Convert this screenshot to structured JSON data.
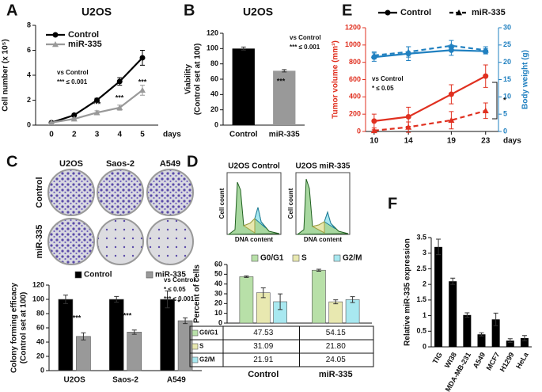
{
  "chart_data": [
    {
      "type": "line",
      "panel": "A",
      "title": "U2OS",
      "ylabel": [
        "Cell number (x 10⁵)"
      ],
      "xlabel": "days",
      "categories": [
        "0",
        "2",
        "3",
        "4",
        "5"
      ],
      "series": [
        {
          "name": "Control",
          "color": "#000000",
          "marker": "circle",
          "values": [
            0.2,
            0.8,
            2.0,
            3.5,
            5.4
          ],
          "errors": [
            0.05,
            0.1,
            0.15,
            0.3,
            0.6
          ]
        },
        {
          "name": "miR-335",
          "color": "#999999",
          "marker": "triangle",
          "values": [
            0.2,
            0.5,
            1.0,
            1.4,
            2.8
          ],
          "errors": [
            0.05,
            0.08,
            0.15,
            0.2,
            0.4
          ]
        }
      ],
      "ylim": [
        0,
        8
      ],
      "yticks": [
        0,
        2,
        4,
        6,
        8
      ],
      "annotations": [
        "vs Control",
        "*** ≤ 0.001",
        "***",
        "***",
        "***"
      ]
    },
    {
      "type": "bar",
      "panel": "B",
      "title": "U2OS",
      "ylabel": [
        "Viability",
        "(Control set at 100)"
      ],
      "categories": [
        "Control",
        "miR-335"
      ],
      "values": [
        100,
        71
      ],
      "errors": [
        2,
        1.5
      ],
      "colors": [
        "#000000",
        "#999999"
      ],
      "ylim": [
        0,
        120
      ],
      "yticks": [
        0,
        20,
        40,
        60,
        80,
        100,
        120
      ],
      "annotations": [
        "vs Control",
        "*** ≤ 0.001",
        "***"
      ]
    },
    {
      "type": "line",
      "panel": "E",
      "ylabel": [
        "Tumor volume (mm³)"
      ],
      "y2label": "Body weight (g)",
      "xlabel": "days",
      "x": [
        10,
        14,
        19,
        23
      ],
      "xlim": [
        9,
        24.5
      ],
      "xticks": [
        10,
        14,
        19,
        23
      ],
      "legend_color": "#000000",
      "y_axis_color": "#e03020",
      "y2_axis_color": "#2080c0",
      "series": [
        {
          "name": "Control",
          "color": "#e03020",
          "marker": "circle",
          "dash": false,
          "values": [
            120,
            170,
            430,
            640
          ],
          "errors": [
            80,
            110,
            110,
            130
          ]
        },
        {
          "name": "miR-335",
          "color": "#e03020",
          "marker": "triangle",
          "dash": true,
          "values": [
            10,
            50,
            130,
            240
          ],
          "errors": [
            10,
            60,
            100,
            90
          ]
        },
        {
          "color": "#2080c0",
          "marker": "circle",
          "dash": false,
          "axis": "y2",
          "values": [
            21.5,
            22.5,
            23.5,
            23.2
          ],
          "errors": [
            1.2,
            2,
            1.5,
            0.8
          ]
        },
        {
          "color": "#2080c0",
          "marker": "triangle",
          "dash": true,
          "axis": "y2",
          "values": [
            22,
            23,
            24.8,
            23.5
          ],
          "errors": [
            1,
            1.5,
            1.5,
            1
          ]
        }
      ],
      "ylim": [
        0,
        1200
      ],
      "yticks": [
        0,
        200,
        400,
        600,
        800,
        1000,
        1200
      ],
      "y2lim": [
        0,
        30
      ],
      "y2ticks": [
        0,
        5,
        10,
        15,
        20,
        25,
        30
      ],
      "annotations": [
        "vs Control",
        "* ≤ 0.05",
        "*"
      ]
    },
    {
      "type": "bar",
      "panel": "C",
      "ylabel": [
        "Colony forming efficacy",
        "(Control set at 100)"
      ],
      "plate_columns": [
        "U2OS",
        "Saos-2",
        "A549"
      ],
      "plate_rows": [
        "Control",
        "miR-335"
      ],
      "categories": [
        "U2OS",
        "Saos-2",
        "A549"
      ],
      "series": [
        {
          "name": "Control",
          "color": "#000000",
          "values": [
            100,
            100,
            100
          ],
          "errors": [
            6,
            4,
            12
          ]
        },
        {
          "name": "miR-335",
          "color": "#999999",
          "values": [
            48,
            54,
            70
          ],
          "errors": [
            5,
            3,
            4
          ]
        }
      ],
      "ylim": [
        0,
        120
      ],
      "yticks": [
        0,
        20,
        40,
        60,
        80,
        100,
        120
      ],
      "annotations": [
        "vs Control",
        "* ≤ 0.05",
        "*** ≤ 0.001",
        "***",
        "***",
        "*"
      ]
    },
    {
      "type": "bar",
      "panel": "D",
      "ylabel": [
        "Percent of cells"
      ],
      "histograms": [
        "U2OS Control",
        "U2OS miR-335"
      ],
      "hist_ylabel": "Cell count",
      "hist_xlabel": "DNA content",
      "categories": [
        "Control",
        "miR-335"
      ],
      "series": [
        {
          "name": "G0/G1",
          "color": "#b8e0a8",
          "values": [
            47.53,
            54.15
          ],
          "value_labels": [
            "47.53",
            "54.15"
          ],
          "errors": [
            0.8,
            1
          ]
        },
        {
          "name": "S",
          "color": "#e8e8b0",
          "values": [
            31.09,
            21.8
          ],
          "value_labels": [
            "31.09",
            "21.80"
          ],
          "errors": [
            5,
            2
          ]
        },
        {
          "name": "G2/M",
          "color": "#a8e8f0",
          "values": [
            21.91,
            24.05
          ],
          "value_labels": [
            "21.91",
            "24.05"
          ],
          "errors": [
            8,
            3
          ]
        }
      ],
      "ylim": [
        0,
        60
      ],
      "yticks": [
        0,
        10,
        20,
        30,
        40,
        50,
        60
      ]
    },
    {
      "type": "bar",
      "panel": "F",
      "ylabel": [
        "Relative miR-335 expression"
      ],
      "categories": [
        "TIG",
        "WI38",
        "MDA-MB-231",
        "A549",
        "MCF7",
        "H1299",
        "HeLa"
      ],
      "values": [
        3.2,
        2.1,
        1.02,
        0.4,
        0.88,
        0.2,
        0.28
      ],
      "errors": [
        0.25,
        0.1,
        0.07,
        0.05,
        0.2,
        0.06,
        0.08
      ],
      "color": "#000000",
      "ylim": [
        0,
        3.5
      ],
      "yticks": [
        0,
        0.5,
        1,
        1.5,
        2,
        2.5,
        3,
        3.5
      ]
    }
  ]
}
